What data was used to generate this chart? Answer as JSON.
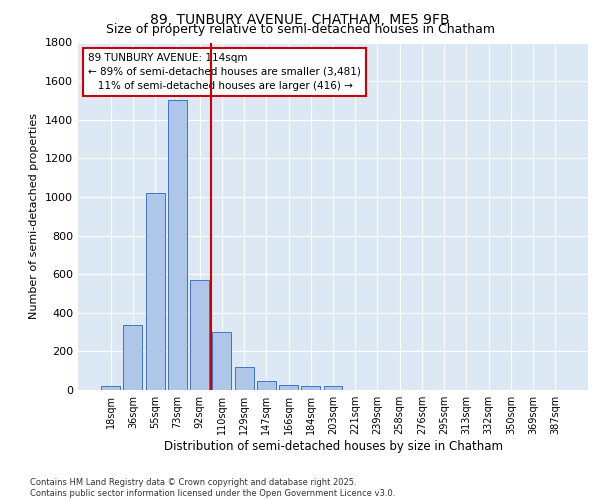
{
  "title": "89, TUNBURY AVENUE, CHATHAM, ME5 9FB",
  "subtitle": "Size of property relative to semi-detached houses in Chatham",
  "xlabel": "Distribution of semi-detached houses by size in Chatham",
  "ylabel": "Number of semi-detached properties",
  "bin_labels": [
    "18sqm",
    "36sqm",
    "55sqm",
    "73sqm",
    "92sqm",
    "110sqm",
    "129sqm",
    "147sqm",
    "166sqm",
    "184sqm",
    "203sqm",
    "221sqm",
    "239sqm",
    "258sqm",
    "276sqm",
    "295sqm",
    "313sqm",
    "332sqm",
    "350sqm",
    "369sqm",
    "387sqm"
  ],
  "bar_values": [
    20,
    335,
    1020,
    1500,
    570,
    300,
    120,
    45,
    25,
    20,
    20,
    0,
    0,
    0,
    0,
    0,
    0,
    0,
    0,
    0,
    0
  ],
  "bar_color": "#aec6e8",
  "bar_edgecolor": "#4472c4",
  "vline_x_idx": 5,
  "vline_color": "#cc0000",
  "annotation_title": "89 TUNBURY AVENUE: 114sqm",
  "annotation_line1": "← 89% of semi-detached houses are smaller (3,481)",
  "annotation_line2": "11% of semi-detached houses are larger (416) →",
  "annotation_box_color": "#cc0000",
  "ylim": [
    0,
    1800
  ],
  "yticks": [
    0,
    200,
    400,
    600,
    800,
    1000,
    1200,
    1400,
    1600,
    1800
  ],
  "bg_color": "#dce9f5",
  "footnote1": "Contains HM Land Registry data © Crown copyright and database right 2025.",
  "footnote2": "Contains public sector information licensed under the Open Government Licence v3.0.",
  "title_fontsize": 10,
  "subtitle_fontsize": 9
}
